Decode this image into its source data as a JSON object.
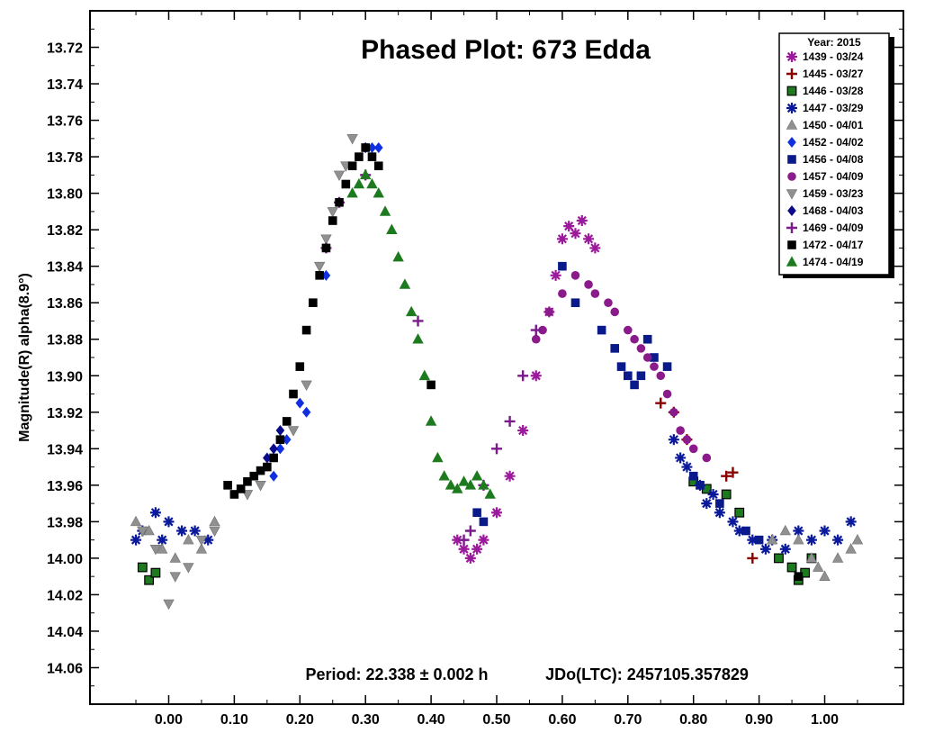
{
  "chart_data": {
    "type": "scatter",
    "title": "Phased Plot: 673 Edda",
    "xlabel": "",
    "ylabel": "Magnitude(R) alpha(8.9°)",
    "xlim": [
      -0.12,
      1.12
    ],
    "ylim": [
      13.7,
      14.08
    ],
    "y_inverted": true,
    "x_ticks": [
      0.0,
      0.1,
      0.2,
      0.3,
      0.4,
      0.5,
      0.6,
      0.7,
      0.8,
      0.9,
      1.0
    ],
    "x_tick_labels": [
      "0.00",
      "0.10",
      "0.20",
      "0.30",
      "0.40",
      "0.50",
      "0.60",
      "0.70",
      "0.80",
      "0.90",
      "1.00"
    ],
    "y_ticks": [
      13.72,
      13.74,
      13.76,
      13.78,
      13.8,
      13.82,
      13.84,
      13.86,
      13.88,
      13.9,
      13.92,
      13.94,
      13.96,
      13.98,
      14.0,
      14.02,
      14.04,
      14.06
    ],
    "y_tick_labels": [
      "13.72",
      "13.74",
      "13.76",
      "13.78",
      "13.80",
      "13.82",
      "13.84",
      "13.86",
      "13.88",
      "13.90",
      "13.92",
      "13.94",
      "13.96",
      "13.98",
      "14.00",
      "14.02",
      "14.04",
      "14.06"
    ],
    "period_label": "Period: 22.338 ± 0.002 h",
    "epoch_label": "JDo(LTC): 2457105.357829",
    "legend": {
      "title": "Year: 2015",
      "placement": "top-right"
    },
    "series": [
      {
        "name": "1439 - 03/24",
        "marker": "asterisk",
        "color": "#9b1a9b",
        "points": [
          [
            0.44,
            13.99
          ],
          [
            0.45,
            13.995
          ],
          [
            0.46,
            14.0
          ],
          [
            0.47,
            13.995
          ],
          [
            0.48,
            13.99
          ],
          [
            0.5,
            13.975
          ],
          [
            0.52,
            13.955
          ],
          [
            0.54,
            13.93
          ],
          [
            0.56,
            13.9
          ],
          [
            0.58,
            13.865
          ],
          [
            0.59,
            13.845
          ],
          [
            0.6,
            13.825
          ],
          [
            0.61,
            13.818
          ],
          [
            0.62,
            13.822
          ],
          [
            0.63,
            13.815
          ],
          [
            0.64,
            13.825
          ],
          [
            0.65,
            13.83
          ]
        ]
      },
      {
        "name": "1445 - 03/27",
        "marker": "plus",
        "color": "#8b0000",
        "points": [
          [
            0.75,
            13.915
          ],
          [
            0.77,
            13.92
          ],
          [
            0.79,
            13.935
          ],
          [
            0.85,
            13.955
          ],
          [
            0.86,
            13.953
          ],
          [
            0.89,
            14.0
          ]
        ]
      },
      {
        "name": "1446 - 03/28",
        "marker": "square-open",
        "color": "#1e7a1e",
        "points": [
          [
            -0.04,
            14.005
          ],
          [
            -0.03,
            14.012
          ],
          [
            -0.02,
            14.008
          ],
          [
            0.8,
            13.958
          ],
          [
            0.82,
            13.962
          ],
          [
            0.85,
            13.965
          ],
          [
            0.87,
            13.975
          ],
          [
            0.93,
            14.0
          ],
          [
            0.95,
            14.005
          ],
          [
            0.96,
            14.012
          ],
          [
            0.97,
            14.008
          ],
          [
            0.98,
            14.0
          ]
        ]
      },
      {
        "name": "1447 - 03/29",
        "marker": "asterisk",
        "color": "#0a1a9b",
        "points": [
          [
            -0.05,
            13.99
          ],
          [
            -0.04,
            13.985
          ],
          [
            -0.02,
            13.975
          ],
          [
            -0.01,
            13.99
          ],
          [
            0.0,
            13.98
          ],
          [
            0.02,
            13.985
          ],
          [
            0.04,
            13.985
          ],
          [
            0.06,
            13.99
          ],
          [
            0.77,
            13.935
          ],
          [
            0.78,
            13.945
          ],
          [
            0.79,
            13.95
          ],
          [
            0.81,
            13.96
          ],
          [
            0.82,
            13.97
          ],
          [
            0.83,
            13.965
          ],
          [
            0.84,
            13.975
          ],
          [
            0.86,
            13.98
          ],
          [
            0.87,
            13.985
          ],
          [
            0.89,
            13.99
          ],
          [
            0.91,
            13.995
          ],
          [
            0.92,
            13.99
          ],
          [
            0.94,
            13.995
          ],
          [
            0.96,
            13.985
          ],
          [
            0.98,
            13.99
          ],
          [
            1.0,
            13.985
          ],
          [
            1.02,
            13.99
          ],
          [
            1.04,
            13.98
          ]
        ]
      },
      {
        "name": "1450 - 04/01",
        "marker": "triangle-up",
        "color": "#909090",
        "points": [
          [
            -0.05,
            13.98
          ],
          [
            -0.03,
            13.985
          ],
          [
            -0.01,
            13.995
          ],
          [
            0.01,
            14.0
          ],
          [
            0.03,
            13.99
          ],
          [
            0.05,
            13.995
          ],
          [
            0.07,
            13.98
          ],
          [
            0.92,
            13.99
          ],
          [
            0.94,
            13.985
          ],
          [
            0.96,
            13.99
          ],
          [
            0.98,
            14.0
          ],
          [
            0.99,
            14.005
          ],
          [
            1.0,
            14.01
          ],
          [
            1.02,
            14.0
          ],
          [
            1.04,
            13.995
          ],
          [
            1.05,
            13.99
          ]
        ]
      },
      {
        "name": "1452 - 04/02",
        "marker": "diamond",
        "color": "#1030e0",
        "points": [
          [
            0.16,
            13.955
          ],
          [
            0.17,
            13.94
          ],
          [
            0.18,
            13.935
          ],
          [
            0.2,
            13.915
          ],
          [
            0.21,
            13.92
          ],
          [
            0.24,
            13.845
          ],
          [
            0.3,
            13.775
          ],
          [
            0.31,
            13.775
          ],
          [
            0.32,
            13.775
          ]
        ]
      },
      {
        "name": "1456 - 04/08",
        "marker": "square",
        "color": "#0a1a8b",
        "points": [
          [
            0.47,
            13.975
          ],
          [
            0.48,
            13.98
          ],
          [
            0.6,
            13.84
          ],
          [
            0.62,
            13.86
          ],
          [
            0.66,
            13.875
          ],
          [
            0.68,
            13.885
          ],
          [
            0.69,
            13.895
          ],
          [
            0.7,
            13.9
          ],
          [
            0.71,
            13.905
          ],
          [
            0.72,
            13.9
          ],
          [
            0.73,
            13.88
          ],
          [
            0.74,
            13.89
          ],
          [
            0.76,
            13.895
          ],
          [
            0.8,
            13.955
          ],
          [
            0.81,
            13.96
          ],
          [
            0.84,
            13.97
          ],
          [
            0.88,
            13.985
          ],
          [
            0.9,
            13.99
          ]
        ]
      },
      {
        "name": "1457 - 04/09",
        "marker": "circle",
        "color": "#8b1a8b",
        "points": [
          [
            0.56,
            13.88
          ],
          [
            0.57,
            13.875
          ],
          [
            0.58,
            13.865
          ],
          [
            0.6,
            13.855
          ],
          [
            0.62,
            13.845
          ],
          [
            0.64,
            13.85
          ],
          [
            0.65,
            13.855
          ],
          [
            0.67,
            13.86
          ],
          [
            0.68,
            13.865
          ],
          [
            0.7,
            13.875
          ],
          [
            0.71,
            13.88
          ],
          [
            0.72,
            13.885
          ],
          [
            0.73,
            13.89
          ],
          [
            0.74,
            13.895
          ],
          [
            0.75,
            13.9
          ],
          [
            0.76,
            13.91
          ],
          [
            0.77,
            13.92
          ],
          [
            0.78,
            13.93
          ],
          [
            0.79,
            13.935
          ],
          [
            0.8,
            13.94
          ],
          [
            0.82,
            13.945
          ]
        ]
      },
      {
        "name": "1459 - 03/23",
        "marker": "triangle-down",
        "color": "#909090",
        "points": [
          [
            -0.04,
            13.985
          ],
          [
            -0.02,
            13.995
          ],
          [
            0.0,
            14.025
          ],
          [
            0.01,
            14.01
          ],
          [
            0.03,
            14.005
          ],
          [
            0.05,
            13.99
          ],
          [
            0.07,
            13.985
          ],
          [
            0.12,
            13.965
          ],
          [
            0.14,
            13.96
          ],
          [
            0.19,
            13.93
          ],
          [
            0.21,
            13.905
          ],
          [
            0.23,
            13.84
          ],
          [
            0.24,
            13.825
          ],
          [
            0.25,
            13.81
          ],
          [
            0.26,
            13.79
          ],
          [
            0.27,
            13.785
          ],
          [
            0.28,
            13.77
          ]
        ]
      },
      {
        "name": "1468 - 04/03",
        "marker": "diamond",
        "color": "#0a0a8b",
        "points": [
          [
            0.15,
            13.945
          ],
          [
            0.16,
            13.94
          ],
          [
            0.17,
            13.93
          ],
          [
            0.3,
            13.775
          ]
        ]
      },
      {
        "name": "1469 - 04/09",
        "marker": "plus",
        "color": "#7a1a8b",
        "points": [
          [
            0.24,
            13.83
          ],
          [
            0.26,
            13.805
          ],
          [
            0.3,
            13.79
          ],
          [
            0.38,
            13.87
          ],
          [
            0.45,
            13.99
          ],
          [
            0.46,
            13.985
          ],
          [
            0.48,
            13.96
          ],
          [
            0.5,
            13.94
          ],
          [
            0.52,
            13.925
          ],
          [
            0.54,
            13.9
          ],
          [
            0.56,
            13.875
          ]
        ]
      },
      {
        "name": "1472 - 04/17",
        "marker": "square",
        "color": "#000000",
        "points": [
          [
            0.09,
            13.96
          ],
          [
            0.1,
            13.965
          ],
          [
            0.11,
            13.962
          ],
          [
            0.12,
            13.958
          ],
          [
            0.13,
            13.955
          ],
          [
            0.14,
            13.952
          ],
          [
            0.15,
            13.95
          ],
          [
            0.16,
            13.945
          ],
          [
            0.17,
            13.935
          ],
          [
            0.18,
            13.925
          ],
          [
            0.19,
            13.91
          ],
          [
            0.2,
            13.895
          ],
          [
            0.21,
            13.875
          ],
          [
            0.22,
            13.86
          ],
          [
            0.23,
            13.845
          ],
          [
            0.24,
            13.83
          ],
          [
            0.25,
            13.815
          ],
          [
            0.26,
            13.805
          ],
          [
            0.27,
            13.795
          ],
          [
            0.28,
            13.785
          ],
          [
            0.29,
            13.78
          ],
          [
            0.3,
            13.775
          ],
          [
            0.31,
            13.78
          ],
          [
            0.32,
            13.785
          ],
          [
            0.4,
            13.905
          ],
          [
            0.96,
            14.01
          ]
        ]
      },
      {
        "name": "1474 - 04/19",
        "marker": "triangle-up",
        "color": "#1e7a1e",
        "points": [
          [
            0.28,
            13.8
          ],
          [
            0.29,
            13.795
          ],
          [
            0.3,
            13.79
          ],
          [
            0.31,
            13.795
          ],
          [
            0.32,
            13.8
          ],
          [
            0.33,
            13.81
          ],
          [
            0.34,
            13.82
          ],
          [
            0.35,
            13.835
          ],
          [
            0.36,
            13.85
          ],
          [
            0.37,
            13.865
          ],
          [
            0.38,
            13.88
          ],
          [
            0.39,
            13.9
          ],
          [
            0.4,
            13.925
          ],
          [
            0.41,
            13.945
          ],
          [
            0.42,
            13.955
          ],
          [
            0.43,
            13.96
          ],
          [
            0.44,
            13.962
          ],
          [
            0.45,
            13.958
          ],
          [
            0.46,
            13.96
          ],
          [
            0.47,
            13.955
          ],
          [
            0.48,
            13.96
          ],
          [
            0.49,
            13.965
          ]
        ]
      }
    ]
  }
}
